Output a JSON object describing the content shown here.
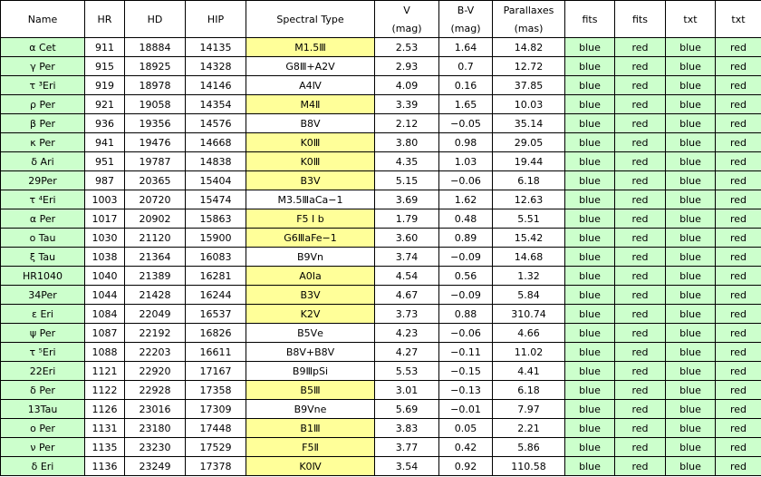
{
  "headers": {
    "name": "Name",
    "hr": "HR",
    "hd": "HD",
    "hip": "HIP",
    "sptype": "Spectral Type",
    "v": "V",
    "v_unit": "(mag)",
    "bv": "B-V",
    "bv_unit": "(mag)",
    "plx": "Parallaxes",
    "plx_unit": "(mas)",
    "fits1": "fits",
    "fits2": "fits",
    "txt1": "txt",
    "txt2": "txt"
  },
  "colors": {
    "green_cell": "#ccffcc",
    "yellow_cell": "#ffff99",
    "white_cell": "#ffffff"
  },
  "rows": [
    {
      "name": "α Cet",
      "hr": "911",
      "hd": "18884",
      "hip": "14135",
      "sptype": "M1.5Ⅲ",
      "sp_hl": true,
      "v": "2.53",
      "bv": "1.64",
      "plx": "14.82",
      "fits1": "blue",
      "fits2": "red",
      "txt1": "blue",
      "txt2": "red"
    },
    {
      "name": "γ Per",
      "hr": "915",
      "hd": "18925",
      "hip": "14328",
      "sptype": "G8Ⅲ+A2Ⅴ",
      "sp_hl": false,
      "v": "2.93",
      "bv": "0.7",
      "plx": "12.72",
      "fits1": "blue",
      "fits2": "red",
      "txt1": "blue",
      "txt2": "red"
    },
    {
      "name": "τ ³Eri",
      "hr": "919",
      "hd": "18978",
      "hip": "14146",
      "sptype": "A4Ⅳ",
      "sp_hl": false,
      "v": "4.09",
      "bv": "0.16",
      "plx": "37.85",
      "fits1": "blue",
      "fits2": "red",
      "txt1": "blue",
      "txt2": "red"
    },
    {
      "name": "ρ Per",
      "hr": "921",
      "hd": "19058",
      "hip": "14354",
      "sptype": "M4Ⅱ",
      "sp_hl": true,
      "v": "3.39",
      "bv": "1.65",
      "plx": "10.03",
      "fits1": "blue",
      "fits2": "red",
      "txt1": "blue",
      "txt2": "red"
    },
    {
      "name": "β Per",
      "hr": "936",
      "hd": "19356",
      "hip": "14576",
      "sptype": "B8Ⅴ",
      "sp_hl": false,
      "v": "2.12",
      "bv": "−0.05",
      "plx": "35.14",
      "fits1": "blue",
      "fits2": "red",
      "txt1": "blue",
      "txt2": "red"
    },
    {
      "name": "κ Per",
      "hr": "941",
      "hd": "19476",
      "hip": "14668",
      "sptype": "K0Ⅲ",
      "sp_hl": true,
      "v": "3.80",
      "bv": "0.98",
      "plx": "29.05",
      "fits1": "blue",
      "fits2": "red",
      "txt1": "blue",
      "txt2": "red"
    },
    {
      "name": "δ Ari",
      "hr": "951",
      "hd": "19787",
      "hip": "14838",
      "sptype": "K0Ⅲ",
      "sp_hl": true,
      "v": "4.35",
      "bv": "1.03",
      "plx": "19.44",
      "fits1": "blue",
      "fits2": "red",
      "txt1": "blue",
      "txt2": "red"
    },
    {
      "name": "29Per",
      "hr": "987",
      "hd": "20365",
      "hip": "15404",
      "sptype": "B3Ⅴ",
      "sp_hl": true,
      "v": "5.15",
      "bv": "−0.06",
      "plx": "6.18",
      "fits1": "blue",
      "fits2": "red",
      "txt1": "blue",
      "txt2": "red"
    },
    {
      "name": "τ ⁴Eri",
      "hr": "1003",
      "hd": "20720",
      "hip": "15474",
      "sptype": "M3.5ⅢaCa−1",
      "sp_hl": false,
      "v": "3.69",
      "bv": "1.62",
      "plx": "12.63",
      "fits1": "blue",
      "fits2": "red",
      "txt1": "blue",
      "txt2": "red"
    },
    {
      "name": "α Per",
      "hr": "1017",
      "hd": "20902",
      "hip": "15863",
      "sptype": "F5 Ⅰ b",
      "sp_hl": true,
      "v": "1.79",
      "bv": "0.48",
      "plx": "5.51",
      "fits1": "blue",
      "fits2": "red",
      "txt1": "blue",
      "txt2": "red"
    },
    {
      "name": "ο Tau",
      "hr": "1030",
      "hd": "21120",
      "hip": "15900",
      "sptype": "G6ⅢaFe−1",
      "sp_hl": true,
      "v": "3.60",
      "bv": "0.89",
      "plx": "15.42",
      "fits1": "blue",
      "fits2": "red",
      "txt1": "blue",
      "txt2": "red"
    },
    {
      "name": "ξ Tau",
      "hr": "1038",
      "hd": "21364",
      "hip": "16083",
      "sptype": "B9Ⅴn",
      "sp_hl": false,
      "v": "3.74",
      "bv": "−0.09",
      "plx": "14.68",
      "fits1": "blue",
      "fits2": "red",
      "txt1": "blue",
      "txt2": "red"
    },
    {
      "name": "HR1040",
      "hr": "1040",
      "hd": "21389",
      "hip": "16281",
      "sptype": "A0Ⅰa",
      "sp_hl": true,
      "v": "4.54",
      "bv": "0.56",
      "plx": "1.32",
      "fits1": "blue",
      "fits2": "red",
      "txt1": "blue",
      "txt2": "red"
    },
    {
      "name": "34Per",
      "hr": "1044",
      "hd": "21428",
      "hip": "16244",
      "sptype": "B3Ⅴ",
      "sp_hl": true,
      "v": "4.67",
      "bv": "−0.09",
      "plx": "5.84",
      "fits1": "blue",
      "fits2": "red",
      "txt1": "blue",
      "txt2": "red"
    },
    {
      "name": "ε Eri",
      "hr": "1084",
      "hd": "22049",
      "hip": "16537",
      "sptype": "K2Ⅴ",
      "sp_hl": true,
      "v": "3.73",
      "bv": "0.88",
      "plx": "310.74",
      "fits1": "blue",
      "fits2": "red",
      "txt1": "blue",
      "txt2": "red"
    },
    {
      "name": "ψ Per",
      "hr": "1087",
      "hd": "22192",
      "hip": "16826",
      "sptype": "B5Ⅴe",
      "sp_hl": false,
      "v": "4.23",
      "bv": "−0.06",
      "plx": "4.66",
      "fits1": "blue",
      "fits2": "red",
      "txt1": "blue",
      "txt2": "red"
    },
    {
      "name": "τ ⁵Eri",
      "hr": "1088",
      "hd": "22203",
      "hip": "16611",
      "sptype": "B8Ⅴ+B8Ⅴ",
      "sp_hl": false,
      "v": "4.27",
      "bv": "−0.11",
      "plx": "11.02",
      "fits1": "blue",
      "fits2": "red",
      "txt1": "blue",
      "txt2": "red"
    },
    {
      "name": "22Eri",
      "hr": "1121",
      "hd": "22920",
      "hip": "17167",
      "sptype": "B9ⅢpSi",
      "sp_hl": false,
      "v": "5.53",
      "bv": "−0.15",
      "plx": "4.41",
      "fits1": "blue",
      "fits2": "red",
      "txt1": "blue",
      "txt2": "red"
    },
    {
      "name": "δ Per",
      "hr": "1122",
      "hd": "22928",
      "hip": "17358",
      "sptype": "B5Ⅲ",
      "sp_hl": true,
      "v": "3.01",
      "bv": "−0.13",
      "plx": "6.18",
      "fits1": "blue",
      "fits2": "red",
      "txt1": "blue",
      "txt2": "red"
    },
    {
      "name": "13Tau",
      "hr": "1126",
      "hd": "23016",
      "hip": "17309",
      "sptype": "B9Ⅴne",
      "sp_hl": false,
      "v": "5.69",
      "bv": "−0.01",
      "plx": "7.97",
      "fits1": "blue",
      "fits2": "red",
      "txt1": "blue",
      "txt2": "red"
    },
    {
      "name": "ο Per",
      "hr": "1131",
      "hd": "23180",
      "hip": "17448",
      "sptype": "B1Ⅲ",
      "sp_hl": true,
      "v": "3.83",
      "bv": "0.05",
      "plx": "2.21",
      "fits1": "blue",
      "fits2": "red",
      "txt1": "blue",
      "txt2": "red"
    },
    {
      "name": "ν Per",
      "hr": "1135",
      "hd": "23230",
      "hip": "17529",
      "sptype": "F5Ⅱ",
      "sp_hl": true,
      "v": "3.77",
      "bv": "0.42",
      "plx": "5.86",
      "fits1": "blue",
      "fits2": "red",
      "txt1": "blue",
      "txt2": "red"
    },
    {
      "name": "δ Eri",
      "hr": "1136",
      "hd": "23249",
      "hip": "17378",
      "sptype": "K0Ⅳ",
      "sp_hl": true,
      "v": "3.54",
      "bv": "0.92",
      "plx": "110.58",
      "fits1": "blue",
      "fits2": "red",
      "txt1": "blue",
      "txt2": "red"
    }
  ]
}
